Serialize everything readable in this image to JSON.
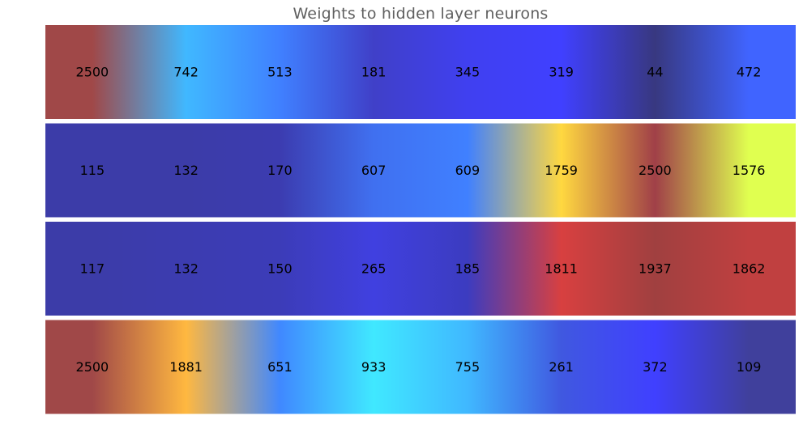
{
  "chart_data": {
    "type": "heatmap",
    "title": "Weights to hidden layer neurons",
    "xlabel": "",
    "ylabel": "",
    "grid": false,
    "rows": [
      {
        "values": [
          2500,
          742,
          513,
          181,
          345,
          319,
          44,
          472
        ],
        "colors": [
          "#a04848",
          "#40b8ff",
          "#4080ff",
          "#4040c8",
          "#4040f0",
          "#4040ff",
          "#383880",
          "#4064ff"
        ]
      },
      {
        "values": [
          115,
          132,
          170,
          607,
          609,
          1759,
          2500,
          1576
        ],
        "colors": [
          "#3c3ca8",
          "#3c3ca8",
          "#3c3cb0",
          "#4070f0",
          "#4080ff",
          "#ffd840",
          "#a04048",
          "#e0ff50"
        ]
      },
      {
        "values": [
          117,
          132,
          150,
          265,
          185,
          1811,
          1937,
          1862
        ],
        "colors": [
          "#3c3ca8",
          "#3c3cb0",
          "#3c3cb8",
          "#4040e0",
          "#3c3cc0",
          "#d84040",
          "#a04040",
          "#c04040"
        ]
      },
      {
        "values": [
          2500,
          1881,
          651,
          933,
          755,
          261,
          372,
          109
        ],
        "colors": [
          "#a04848",
          "#ffb840",
          "#4088ff",
          "#40e8ff",
          "#40b8ff",
          "#4058e0",
          "#4040ff",
          "#40409c"
        ]
      }
    ]
  }
}
